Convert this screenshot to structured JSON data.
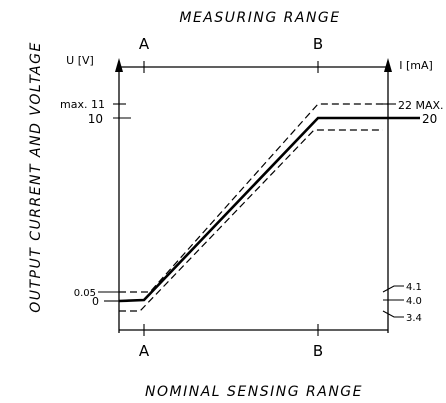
{
  "title": "MEASURING RANGE",
  "bottom_label": "NOMINAL SENSING RANGE",
  "side_label": "OUTPUT CURRENT AND VOLTAGE",
  "left_axis": {
    "unit": "U [V]",
    "ticks": {
      "max": "max. 11",
      "ten": "10",
      "low": "0.05",
      "zero": "0"
    }
  },
  "right_axis": {
    "unit": "I [mA]",
    "ticks": {
      "max": "22 MAX.",
      "twenty": "20",
      "high": "4.1",
      "mid": "4.0",
      "low": "3.4"
    }
  },
  "points": {
    "a_top": "A",
    "b_top": "B",
    "a_bottom": "A",
    "b_bottom": "B"
  }
}
